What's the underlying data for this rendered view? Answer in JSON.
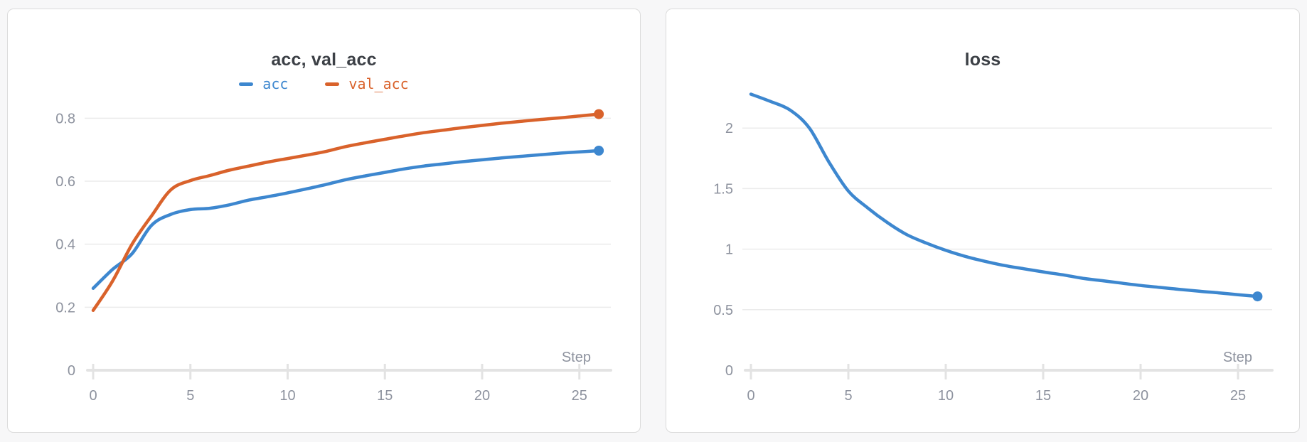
{
  "chart_data": [
    {
      "type": "line",
      "title": "acc, val_acc",
      "xlabel": "Step",
      "x": [
        0,
        1,
        2,
        3,
        4,
        5,
        6,
        7,
        8,
        9,
        10,
        11,
        12,
        13,
        14,
        15,
        16,
        17,
        18,
        19,
        20,
        21,
        22,
        23,
        24,
        25,
        26
      ],
      "series": [
        {
          "name": "acc",
          "color": "#3d87cf",
          "values": [
            0.26,
            0.32,
            0.37,
            0.46,
            0.495,
            0.51,
            0.514,
            0.525,
            0.54,
            0.551,
            0.563,
            0.576,
            0.59,
            0.605,
            0.617,
            0.628,
            0.639,
            0.648,
            0.655,
            0.662,
            0.668,
            0.674,
            0.679,
            0.684,
            0.689,
            0.693,
            0.697
          ]
        },
        {
          "name": "val_acc",
          "color": "#d9622b",
          "values": [
            0.19,
            0.283,
            0.4,
            0.49,
            0.573,
            0.602,
            0.618,
            0.635,
            0.648,
            0.661,
            0.672,
            0.683,
            0.695,
            0.71,
            0.722,
            0.733,
            0.744,
            0.754,
            0.762,
            0.77,
            0.777,
            0.784,
            0.79,
            0.796,
            0.801,
            0.807,
            0.813
          ]
        }
      ],
      "yticks": [
        0,
        0.2,
        0.4,
        0.6,
        0.8
      ],
      "xticks": [
        0,
        5,
        10,
        15,
        20,
        25
      ],
      "ylim": [
        0,
        0.9
      ],
      "xlim": [
        0,
        26.6
      ],
      "grid": true,
      "legend_position": "top",
      "endpoint_markers": true
    },
    {
      "type": "line",
      "title": "loss",
      "xlabel": "Step",
      "x": [
        0,
        1,
        2,
        3,
        4,
        5,
        6,
        7,
        8,
        9,
        10,
        11,
        12,
        13,
        14,
        15,
        16,
        17,
        18,
        19,
        20,
        21,
        22,
        23,
        24,
        25,
        26
      ],
      "series": [
        {
          "name": "loss",
          "color": "#3d87cf",
          "values": [
            2.28,
            2.22,
            2.15,
            2.0,
            1.72,
            1.48,
            1.34,
            1.22,
            1.12,
            1.05,
            0.99,
            0.94,
            0.9,
            0.865,
            0.838,
            0.812,
            0.788,
            0.76,
            0.74,
            0.72,
            0.7,
            0.684,
            0.668,
            0.653,
            0.639,
            0.624,
            0.61
          ]
        }
      ],
      "yticks": [
        0,
        0.5,
        1,
        1.5,
        2
      ],
      "xticks": [
        0,
        5,
        10,
        15,
        20,
        25
      ],
      "ylim": [
        0,
        2.33
      ],
      "xlim": [
        0,
        26.6
      ],
      "grid": true,
      "legend_position": "none",
      "endpoint_markers": true
    }
  ],
  "colors": {
    "accent_blue": "#3d87cf",
    "accent_orange": "#d9622b",
    "background": "#f7f7f8",
    "card_border": "#dbdbdb",
    "grid_line": "#ebebeb",
    "axis_line": "#e3e3e3",
    "tick_text": "#8d929e",
    "title_text": "#3c4046"
  }
}
